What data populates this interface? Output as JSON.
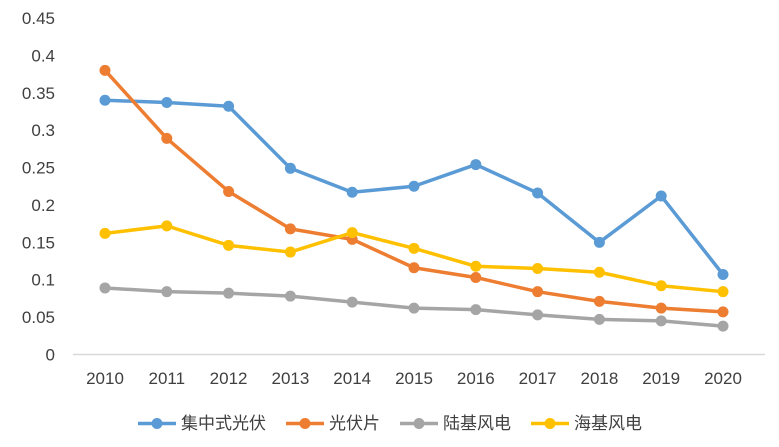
{
  "chart_data": {
    "type": "line",
    "title": "",
    "xlabel": "",
    "ylabel": "",
    "categories": [
      "2010",
      "2011",
      "2012",
      "2013",
      "2014",
      "2015",
      "2016",
      "2017",
      "2018",
      "2019",
      "2020"
    ],
    "series": [
      {
        "name": "集中式光伏",
        "color": "#5B9BD5",
        "values": [
          0.34,
          0.337,
          0.332,
          0.249,
          0.217,
          0.225,
          0.254,
          0.216,
          0.15,
          0.212,
          0.107
        ]
      },
      {
        "name": "光伏片",
        "color": "#ED7D31",
        "values": [
          0.38,
          0.289,
          0.218,
          0.168,
          0.154,
          0.116,
          0.103,
          0.084,
          0.071,
          0.062,
          0.057
        ]
      },
      {
        "name": "陆基风电",
        "color": "#A5A5A5",
        "values": [
          0.089,
          0.084,
          0.082,
          0.078,
          0.07,
          0.062,
          0.06,
          0.053,
          0.047,
          0.045,
          0.038
        ]
      },
      {
        "name": "海基风电",
        "color": "#FFC000",
        "values": [
          0.162,
          0.172,
          0.146,
          0.137,
          0.163,
          0.142,
          0.118,
          0.115,
          0.11,
          0.092,
          0.084
        ]
      }
    ],
    "ylim": [
      0,
      0.45
    ],
    "y_ticks": [
      "0",
      "0.05",
      "0.1",
      "0.15",
      "0.2",
      "0.25",
      "0.3",
      "0.35",
      "0.4",
      "0.45"
    ],
    "grid": false,
    "legend_position": "bottom",
    "axis_line_color": "#D9D9D9",
    "label_color": "#404040",
    "marker_style": "circle"
  }
}
